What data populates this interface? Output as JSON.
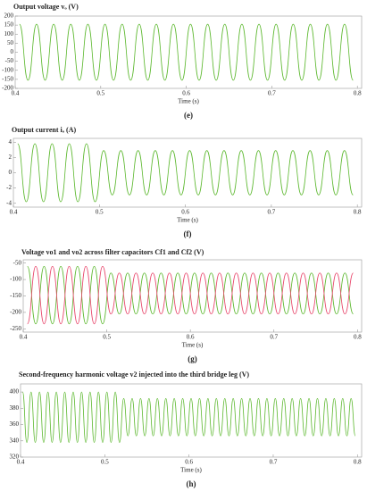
{
  "chart_data": [
    {
      "type": "line",
      "title": "Output voltage vₒ (V)",
      "xlabel": "Time (s)",
      "label": "(e)",
      "x": [
        0.405,
        0.415,
        0.425,
        0.435,
        0.445,
        0.455,
        0.465,
        0.475,
        0.485,
        0.495,
        0.505,
        0.515,
        0.525,
        0.535,
        0.545,
        0.555,
        0.565,
        0.575,
        0.585,
        0.595,
        0.605,
        0.615,
        0.625,
        0.635,
        0.645,
        0.655,
        0.665,
        0.675,
        0.685,
        0.695,
        0.705,
        0.715,
        0.725,
        0.735,
        0.745,
        0.755,
        0.765,
        0.775,
        0.785,
        0.795
      ],
      "series": [
        {
          "color": "#5cb82e",
          "values": [
            155,
            -155,
            155,
            -155,
            155,
            -155,
            155,
            -155,
            155,
            -155,
            155,
            -155,
            155,
            -155,
            155,
            -155,
            155,
            -155,
            155,
            -155,
            155,
            -155,
            155,
            -155,
            155,
            -155,
            155,
            -155,
            155,
            -155,
            155,
            -155,
            155,
            -155,
            155,
            -155,
            155,
            -155,
            155,
            -155
          ]
        }
      ],
      "xlim": [
        0.4,
        0.805
      ],
      "xticks": [
        0.4,
        0.5,
        0.6,
        0.7,
        0.8
      ],
      "ylim": [
        -200,
        200
      ],
      "yticks": [
        -200,
        -150,
        -100,
        -50,
        0,
        50,
        100,
        150,
        200
      ]
    },
    {
      "type": "line",
      "title": "Output current iₒ (A)",
      "xlabel": "Time (s)",
      "label": "(f)",
      "x": [
        0.405,
        0.415,
        0.425,
        0.435,
        0.445,
        0.455,
        0.465,
        0.475,
        0.485,
        0.495,
        0.505,
        0.515,
        0.525,
        0.535,
        0.545,
        0.555,
        0.565,
        0.575,
        0.585,
        0.595,
        0.605,
        0.615,
        0.625,
        0.635,
        0.645,
        0.655,
        0.665,
        0.675,
        0.685,
        0.695,
        0.705,
        0.715,
        0.725,
        0.735,
        0.745,
        0.755,
        0.765,
        0.775,
        0.785,
        0.795
      ],
      "series": [
        {
          "color": "#5cb82e",
          "values": [
            3.8,
            -3.8,
            3.8,
            -3.8,
            3.8,
            -3.8,
            3.8,
            -3.8,
            3.8,
            -3.8,
            2.9,
            -2.9,
            2.9,
            -2.9,
            2.9,
            -2.9,
            2.9,
            -2.9,
            2.9,
            -2.9,
            2.9,
            -2.9,
            2.9,
            -2.9,
            2.9,
            -2.9,
            2.9,
            -2.9,
            2.9,
            -2.9,
            2.9,
            -2.9,
            2.9,
            -2.9,
            2.9,
            -2.9,
            2.9,
            -2.9,
            2.9,
            -2.9
          ]
        }
      ],
      "xlim": [
        0.4,
        0.805
      ],
      "xticks": [
        0.4,
        0.5,
        0.6,
        0.7,
        0.8
      ],
      "ylim": [
        -4.5,
        4.5
      ],
      "yticks": [
        -4,
        -2,
        0,
        2,
        4
      ]
    },
    {
      "type": "line",
      "title": "Voltage vo1 and vo2 across filter capacitors Cf1 and Cf2 (V)",
      "xlabel": "Time (s)",
      "label": "(g)",
      "x": [
        0.405,
        0.415,
        0.425,
        0.435,
        0.445,
        0.455,
        0.465,
        0.475,
        0.485,
        0.495,
        0.505,
        0.515,
        0.525,
        0.535,
        0.545,
        0.555,
        0.565,
        0.575,
        0.585,
        0.595,
        0.605,
        0.615,
        0.625,
        0.635,
        0.645,
        0.655,
        0.665,
        0.675,
        0.685,
        0.695,
        0.705,
        0.715,
        0.725,
        0.735,
        0.745,
        0.755,
        0.765,
        0.775,
        0.785,
        0.795
      ],
      "series": [
        {
          "color": "#5cb82e",
          "values": [
            -60,
            -235,
            -60,
            -235,
            -60,
            -235,
            -60,
            -235,
            -60,
            -235,
            -80,
            -205,
            -80,
            -205,
            -80,
            -205,
            -80,
            -205,
            -80,
            -205,
            -80,
            -205,
            -80,
            -205,
            -80,
            -205,
            -80,
            -205,
            -80,
            -205,
            -80,
            -205,
            -80,
            -205,
            -80,
            -205,
            -80,
            -205,
            -80,
            -205
          ]
        },
        {
          "color": "#e8456a",
          "values": [
            -235,
            -60,
            -235,
            -60,
            -235,
            -60,
            -235,
            -60,
            -235,
            -60,
            -205,
            -80,
            -205,
            -80,
            -205,
            -80,
            -205,
            -80,
            -205,
            -80,
            -205,
            -80,
            -205,
            -80,
            -205,
            -80,
            -205,
            -80,
            -205,
            -80,
            -205,
            -80,
            -205,
            -80,
            -205,
            -80,
            -205,
            -80,
            -205,
            -80
          ]
        }
      ],
      "xlim": [
        0.4,
        0.805
      ],
      "xticks": [
        0.4,
        0.5,
        0.6,
        0.7,
        0.8
      ],
      "ylim": [
        -260,
        -40
      ],
      "yticks": [
        -250,
        -200,
        -150,
        -100,
        -50
      ]
    },
    {
      "type": "line",
      "title": "Second-frequency harmonic voltage v2 injected into the third bridge leg (V)",
      "xlabel": "Time (s)",
      "label": "(h)",
      "x": [
        0.4025,
        0.4075,
        0.4125,
        0.4175,
        0.4225,
        0.4275,
        0.4325,
        0.4375,
        0.4425,
        0.4475,
        0.4525,
        0.4575,
        0.4625,
        0.4675,
        0.4725,
        0.4775,
        0.4825,
        0.4875,
        0.4925,
        0.4975,
        0.5025,
        0.5075,
        0.5125,
        0.5175,
        0.5225,
        0.5275,
        0.5325,
        0.5375,
        0.5425,
        0.5475,
        0.5525,
        0.5575,
        0.5625,
        0.5675,
        0.5725,
        0.5775,
        0.5825,
        0.5875,
        0.5925,
        0.5975,
        0.6025,
        0.6075,
        0.6125,
        0.6175,
        0.6225,
        0.6275,
        0.6325,
        0.6375,
        0.6425,
        0.6475,
        0.6525,
        0.6575,
        0.6625,
        0.6675,
        0.6725,
        0.6775,
        0.6825,
        0.6875,
        0.6925,
        0.6975,
        0.7025,
        0.7075,
        0.7125,
        0.7175,
        0.7225,
        0.7275,
        0.7325,
        0.7375,
        0.7425,
        0.7475,
        0.7525,
        0.7575,
        0.7625,
        0.7675,
        0.7725,
        0.7775,
        0.7825,
        0.7875,
        0.7925,
        0.7975
      ],
      "series": [
        {
          "color": "#5cb82e",
          "values": [
            400,
            338,
            400,
            338,
            400,
            338,
            400,
            338,
            400,
            338,
            400,
            338,
            400,
            338,
            400,
            338,
            400,
            338,
            400,
            338,
            400,
            338,
            400,
            338,
            392,
            346,
            392,
            346,
            392,
            346,
            392,
            346,
            392,
            346,
            392,
            346,
            392,
            346,
            392,
            346,
            392,
            346,
            392,
            346,
            392,
            346,
            392,
            346,
            392,
            346,
            392,
            346,
            392,
            346,
            392,
            346,
            392,
            346,
            392,
            346,
            392,
            346,
            392,
            346,
            392,
            346,
            392,
            346,
            392,
            346,
            392,
            346,
            392,
            346,
            392,
            346,
            392,
            346,
            392,
            346
          ]
        }
      ],
      "xlim": [
        0.4,
        0.805
      ],
      "xticks": [
        0.4,
        0.5,
        0.6,
        0.7,
        0.8
      ],
      "ylim": [
        320,
        410
      ],
      "yticks": [
        320,
        340,
        360,
        380,
        400
      ]
    }
  ]
}
